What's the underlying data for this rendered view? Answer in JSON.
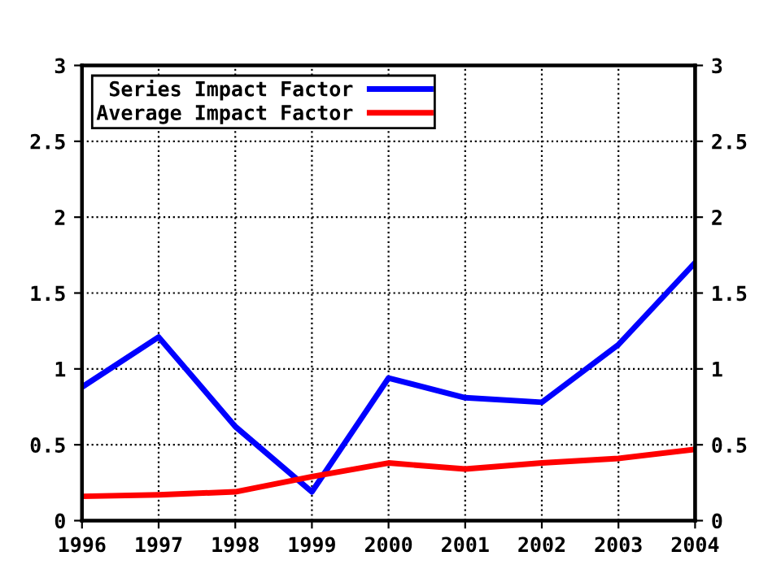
{
  "chart_data": {
    "type": "line",
    "x": [
      1996,
      1997,
      1998,
      1999,
      2000,
      2001,
      2002,
      2003,
      2004
    ],
    "series": [
      {
        "name": "Series Impact Factor",
        "color": "#0000ff",
        "values": [
          0.88,
          1.21,
          0.62,
          0.19,
          0.94,
          0.81,
          0.78,
          1.16,
          1.7
        ]
      },
      {
        "name": "Average Impact Factor",
        "color": "#ff0000",
        "values": [
          0.16,
          0.17,
          0.19,
          0.29,
          0.38,
          0.34,
          0.38,
          0.41,
          0.47
        ]
      }
    ],
    "xlim": [
      1996,
      2004
    ],
    "xticks": [
      1996,
      1997,
      1998,
      1999,
      2000,
      2001,
      2002,
      2003,
      2004
    ],
    "ylim": [
      0,
      3
    ],
    "yticks": [
      0,
      0.5,
      1,
      1.5,
      2,
      2.5,
      3
    ],
    "y2lim": [
      0,
      3
    ],
    "y2ticks": [
      0,
      0.5,
      1,
      1.5,
      2,
      2.5,
      3
    ],
    "grid": true,
    "legend": "top left",
    "marker": "none",
    "line_style": "solid"
  }
}
